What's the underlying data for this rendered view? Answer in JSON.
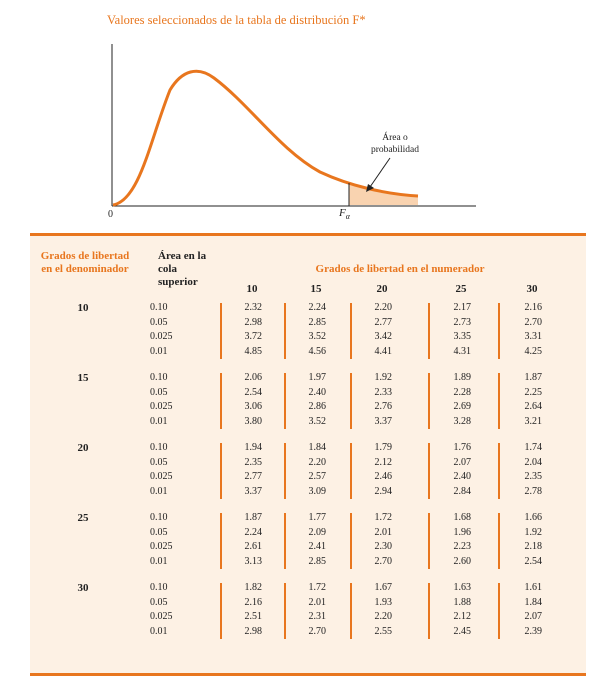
{
  "title": "Valores seleccionados de la tabla de distribución F*",
  "figure": {
    "origin_label": "0",
    "critical_label": "F",
    "critical_subscript": "α",
    "area_note": "Área o probabilidad",
    "curve_color": "#e8761e",
    "shade_color": "#f9d3b0"
  },
  "table": {
    "header_left": "Grados de libertad en el denominador",
    "header_area": "Área en la cola superior",
    "header_numerator": "Grados de libertad en el numerador",
    "numerator_df": [
      "10",
      "15",
      "20",
      "25",
      "30"
    ],
    "groups": [
      {
        "df": "10",
        "rows": [
          {
            "alpha": "0.10",
            "values": [
              "2.32",
              "2.24",
              "2.20",
              "2.17",
              "2.16"
            ]
          },
          {
            "alpha": "0.05",
            "values": [
              "2.98",
              "2.85",
              "2.77",
              "2.73",
              "2.70"
            ]
          },
          {
            "alpha": "0.025",
            "values": [
              "3.72",
              "3.52",
              "3.42",
              "3.35",
              "3.31"
            ]
          },
          {
            "alpha": "0.01",
            "values": [
              "4.85",
              "4.56",
              "4.41",
              "4.31",
              "4.25"
            ]
          }
        ]
      },
      {
        "df": "15",
        "rows": [
          {
            "alpha": "0.10",
            "values": [
              "2.06",
              "1.97",
              "1.92",
              "1.89",
              "1.87"
            ]
          },
          {
            "alpha": "0.05",
            "values": [
              "2.54",
              "2.40",
              "2.33",
              "2.28",
              "2.25"
            ]
          },
          {
            "alpha": "0.025",
            "values": [
              "3.06",
              "2.86",
              "2.76",
              "2.69",
              "2.64"
            ]
          },
          {
            "alpha": "0.01",
            "values": [
              "3.80",
              "3.52",
              "3.37",
              "3.28",
              "3.21"
            ]
          }
        ]
      },
      {
        "df": "20",
        "rows": [
          {
            "alpha": "0.10",
            "values": [
              "1.94",
              "1.84",
              "1.79",
              "1.76",
              "1.74"
            ]
          },
          {
            "alpha": "0.05",
            "values": [
              "2.35",
              "2.20",
              "2.12",
              "2.07",
              "2.04"
            ]
          },
          {
            "alpha": "0.025",
            "values": [
              "2.77",
              "2.57",
              "2.46",
              "2.40",
              "2.35"
            ]
          },
          {
            "alpha": "0.01",
            "values": [
              "3.37",
              "3.09",
              "2.94",
              "2.84",
              "2.78"
            ]
          }
        ]
      },
      {
        "df": "25",
        "rows": [
          {
            "alpha": "0.10",
            "values": [
              "1.87",
              "1.77",
              "1.72",
              "1.68",
              "1.66"
            ]
          },
          {
            "alpha": "0.05",
            "values": [
              "2.24",
              "2.09",
              "2.01",
              "1.96",
              "1.92"
            ]
          },
          {
            "alpha": "0.025",
            "values": [
              "2.61",
              "2.41",
              "2.30",
              "2.23",
              "2.18"
            ]
          },
          {
            "alpha": "0.01",
            "values": [
              "3.13",
              "2.85",
              "2.70",
              "2.60",
              "2.54"
            ]
          }
        ]
      },
      {
        "df": "30",
        "rows": [
          {
            "alpha": "0.10",
            "values": [
              "1.82",
              "1.72",
              "1.67",
              "1.63",
              "1.61"
            ]
          },
          {
            "alpha": "0.05",
            "values": [
              "2.16",
              "2.01",
              "1.93",
              "1.88",
              "1.84"
            ]
          },
          {
            "alpha": "0.025",
            "values": [
              "2.51",
              "2.31",
              "2.20",
              "2.12",
              "2.07"
            ]
          },
          {
            "alpha": "0.01",
            "values": [
              "2.98",
              "2.70",
              "2.55",
              "2.45",
              "2.39"
            ]
          }
        ]
      }
    ]
  }
}
